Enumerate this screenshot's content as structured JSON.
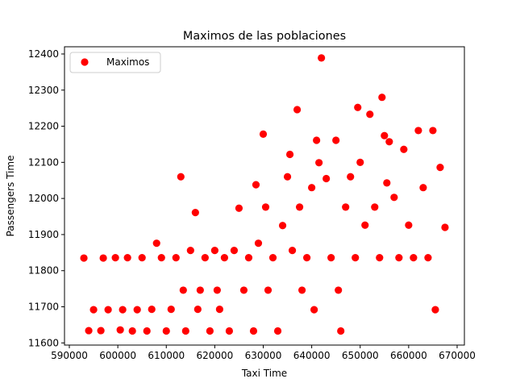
{
  "chart_data": {
    "type": "scatter",
    "title": "Maximos de las poblaciones",
    "xlabel": "Taxi Time",
    "ylabel": "Passengers Time",
    "xlim": [
      589000,
      671500
    ],
    "ylim": [
      11594,
      12420
    ],
    "xticks": [
      590000,
      600000,
      610000,
      620000,
      630000,
      640000,
      650000,
      660000,
      670000
    ],
    "yticks": [
      11600,
      11700,
      11800,
      11900,
      12000,
      12100,
      12200,
      12300,
      12400
    ],
    "grid": false,
    "legend": {
      "position": "top-left",
      "entries": [
        "Maximos"
      ]
    },
    "series": [
      {
        "name": "Maximos",
        "color": "#ff0000",
        "marker": "circle",
        "points_note_free": true,
        "points": [
          [
            593000,
            11835
          ],
          [
            594000,
            11634
          ],
          [
            595000,
            11692
          ],
          [
            596500,
            11634
          ],
          [
            597000,
            11835
          ],
          [
            598000,
            11692
          ],
          [
            599500,
            11836
          ],
          [
            600500,
            11636
          ],
          [
            601000,
            11692
          ],
          [
            602000,
            11836
          ],
          [
            603000,
            11633
          ],
          [
            604000,
            11692
          ],
          [
            605000,
            11836
          ],
          [
            606000,
            11633
          ],
          [
            607000,
            11693
          ],
          [
            608000,
            11876
          ],
          [
            609000,
            11836
          ],
          [
            610000,
            11633
          ],
          [
            611000,
            11693
          ],
          [
            612000,
            11836
          ],
          [
            613000,
            12060
          ],
          [
            613500,
            11746
          ],
          [
            614000,
            11633
          ],
          [
            615000,
            11856
          ],
          [
            616000,
            11961
          ],
          [
            616500,
            11693
          ],
          [
            617000,
            11746
          ],
          [
            618000,
            11836
          ],
          [
            619000,
            11633
          ],
          [
            620000,
            11856
          ],
          [
            620500,
            11746
          ],
          [
            621000,
            11693
          ],
          [
            622000,
            11836
          ],
          [
            623000,
            11633
          ],
          [
            624000,
            11856
          ],
          [
            625000,
            11973
          ],
          [
            626000,
            11746
          ],
          [
            627000,
            11836
          ],
          [
            628000,
            11633
          ],
          [
            628500,
            12038
          ],
          [
            629000,
            11876
          ],
          [
            630000,
            12178
          ],
          [
            630500,
            11976
          ],
          [
            631000,
            11746
          ],
          [
            632000,
            11836
          ],
          [
            633000,
            11633
          ],
          [
            634000,
            11925
          ],
          [
            635000,
            12060
          ],
          [
            635500,
            12122
          ],
          [
            636000,
            11856
          ],
          [
            637000,
            12246
          ],
          [
            637500,
            11976
          ],
          [
            638000,
            11746
          ],
          [
            639000,
            11836
          ],
          [
            640000,
            12030
          ],
          [
            640500,
            11692
          ],
          [
            641000,
            12161
          ],
          [
            641500,
            12099
          ],
          [
            642000,
            12389
          ],
          [
            643000,
            12055
          ],
          [
            644000,
            11836
          ],
          [
            645000,
            12161
          ],
          [
            645500,
            11746
          ],
          [
            646000,
            11633
          ],
          [
            647000,
            11976
          ],
          [
            648000,
            12060
          ],
          [
            649000,
            11836
          ],
          [
            649500,
            12252
          ],
          [
            650000,
            12100
          ],
          [
            651000,
            11926
          ],
          [
            652000,
            12233
          ],
          [
            653000,
            11976
          ],
          [
            654000,
            11836
          ],
          [
            654500,
            12280
          ],
          [
            655000,
            12174
          ],
          [
            655500,
            12043
          ],
          [
            656000,
            12157
          ],
          [
            657000,
            12003
          ],
          [
            658000,
            11836
          ],
          [
            659000,
            12136
          ],
          [
            660000,
            11926
          ],
          [
            661000,
            11836
          ],
          [
            662000,
            12188
          ],
          [
            663000,
            12030
          ],
          [
            664000,
            11836
          ],
          [
            665000,
            12188
          ],
          [
            665500,
            11692
          ],
          [
            666500,
            12086
          ],
          [
            667500,
            11920
          ]
        ]
      }
    ]
  }
}
